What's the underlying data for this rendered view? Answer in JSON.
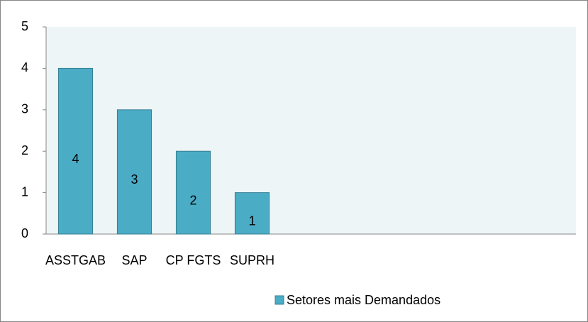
{
  "chart_data": {
    "type": "bar",
    "categories": [
      "ASSTGAB",
      "SAP",
      "CP FGTS",
      "SUPRH"
    ],
    "series": [
      {
        "name": "Setores mais Demandados",
        "color": "#4bacc6",
        "values": [
          4,
          3,
          2,
          1
        ]
      }
    ],
    "ylim": [
      0,
      5
    ],
    "yticks": [
      0,
      1,
      2,
      3,
      4,
      5
    ],
    "grid": false,
    "legend": "bottom"
  }
}
